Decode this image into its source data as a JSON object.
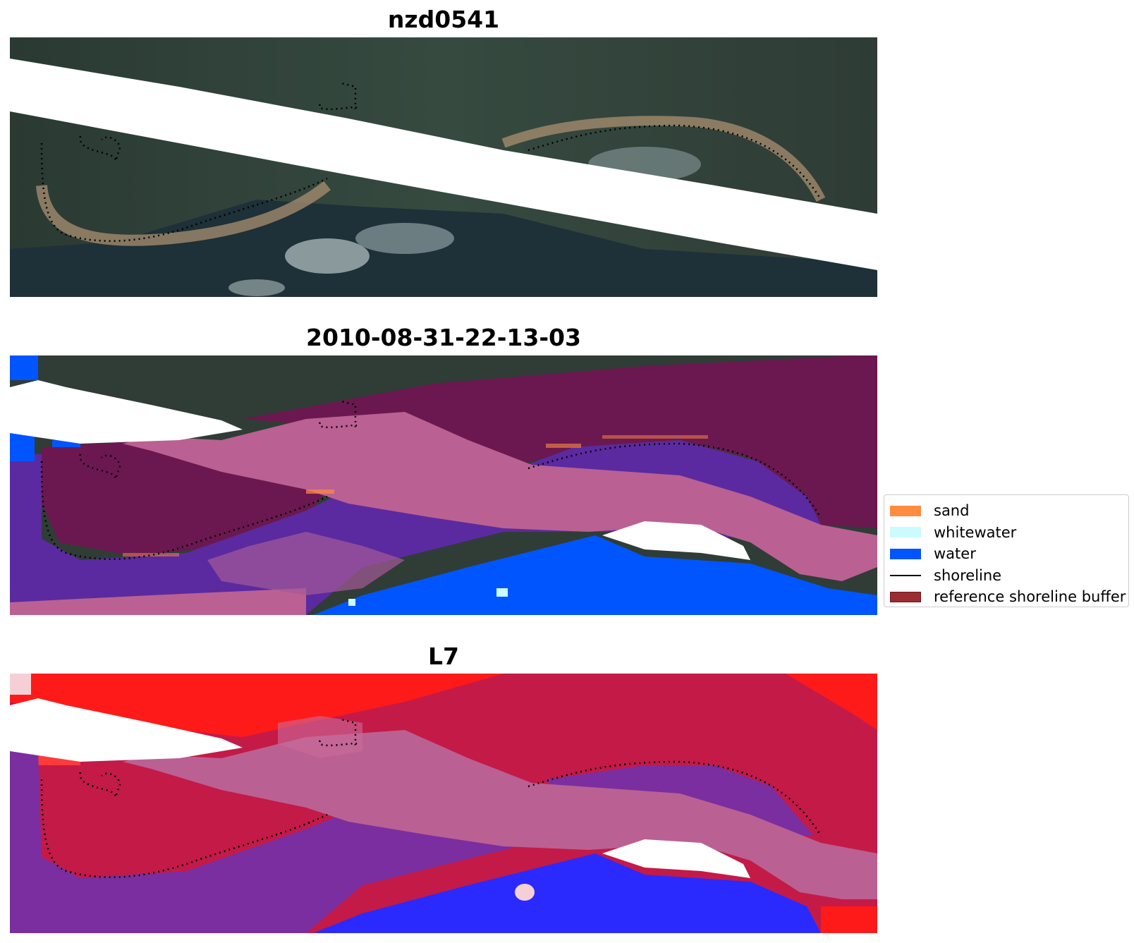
{
  "panels": [
    {
      "title": "nzd0541",
      "view": "rgb-composite"
    },
    {
      "title": "2010-08-31-22-13-03",
      "view": "classified-overlay"
    },
    {
      "title": "L7",
      "view": "index-overlay"
    }
  ],
  "legend": {
    "items": [
      {
        "label": "sand",
        "kind": "patch",
        "color": "#ff8c3f"
      },
      {
        "label": "whitewater",
        "kind": "patch",
        "color": "#cbfbff"
      },
      {
        "label": "water",
        "kind": "patch",
        "color": "#0055ff"
      },
      {
        "label": "shoreline",
        "kind": "line",
        "color": "#000000"
      },
      {
        "label": "reference shoreline buffer",
        "kind": "patch",
        "color": "#9b2d32"
      }
    ]
  },
  "colors": {
    "land": "#2f3d36",
    "deep_water": "#1c2e36",
    "buffer_dark": "#6b1850",
    "buffer_light": "#bb6092",
    "classified_water_purple": "#5b2aa0",
    "water_blue": "#0055ff",
    "index_red": "#ff1a1a",
    "index_crimson": "#c41a48",
    "index_purple": "#7b2ea0",
    "index_blue": "#2a2aff",
    "shoreline": "#000000"
  }
}
